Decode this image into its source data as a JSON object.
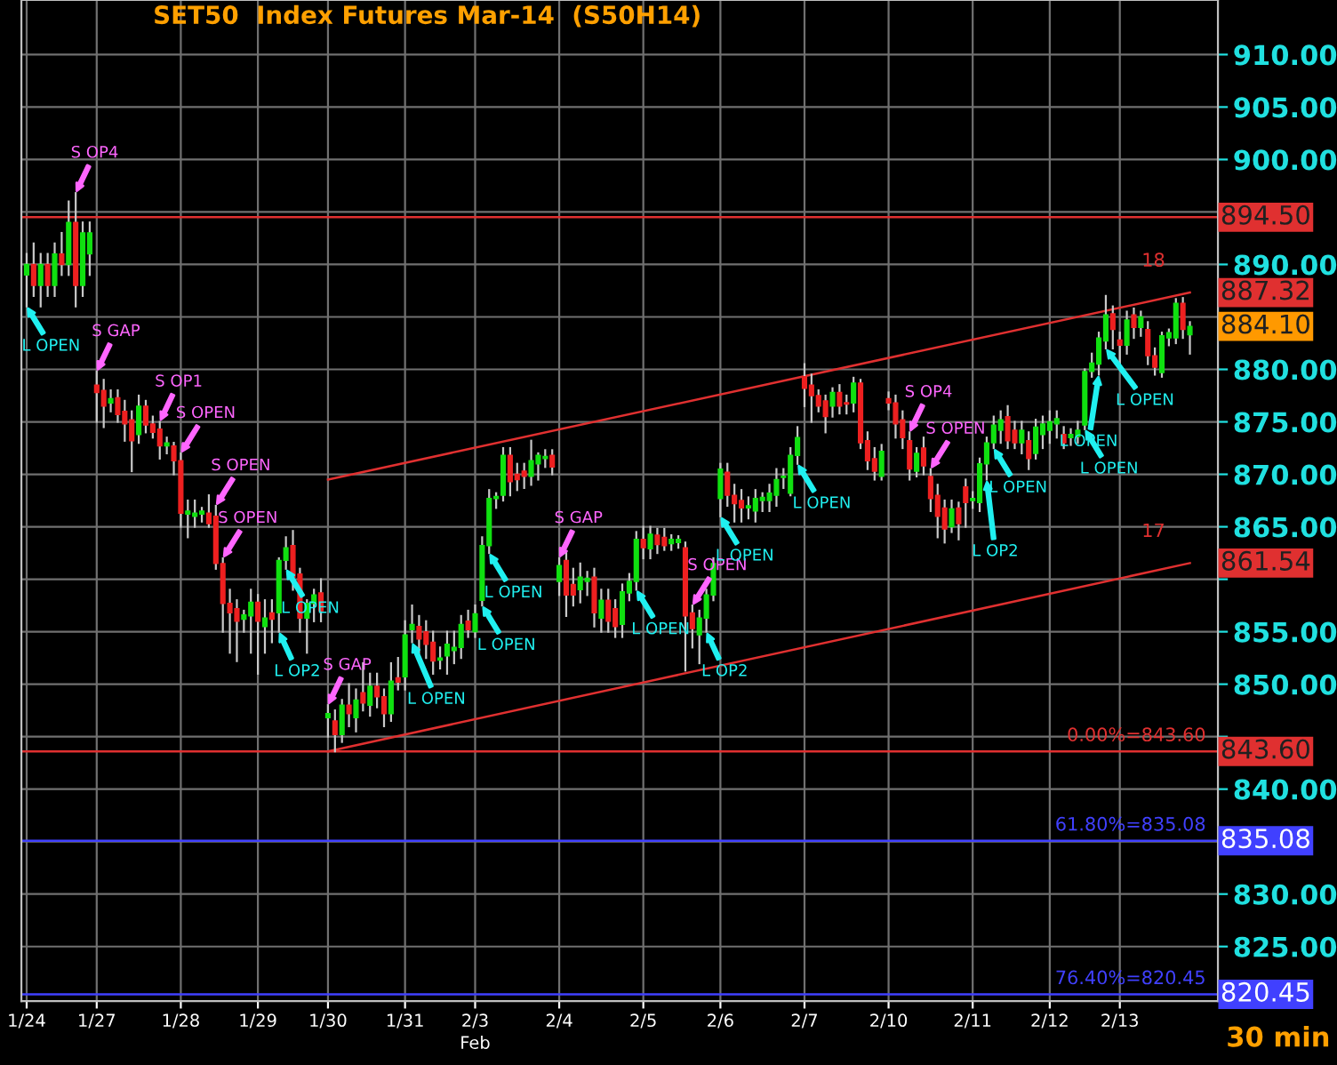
{
  "chart_data": {
    "type": "candlestick",
    "title": "SET50  Index Futures Mar-14  (S50H14)",
    "categories": [
      "1/24",
      null,
      null,
      null,
      null,
      null,
      null,
      null,
      null,
      null,
      "1/27",
      null,
      null,
      null,
      null,
      null,
      null,
      null,
      null,
      null,
      null,
      null,
      "1/28",
      null,
      null,
      null,
      null,
      null,
      null,
      null,
      null,
      null,
      null,
      "1/29",
      null,
      null,
      null,
      null,
      null,
      null,
      null,
      null,
      null,
      "1/30",
      null,
      null,
      null,
      null,
      null,
      null,
      null,
      null,
      null,
      null,
      "1/31",
      null,
      null,
      null,
      null,
      null,
      null,
      null,
      null,
      null,
      "2/3",
      null,
      null,
      null,
      null,
      null,
      null,
      null,
      null,
      null,
      null,
      null,
      "2/4",
      null,
      null,
      null,
      null,
      null,
      null,
      null,
      null,
      null,
      null,
      null,
      "2/5",
      null,
      null,
      null,
      null,
      null,
      null,
      null,
      null,
      null,
      null,
      "2/6",
      null,
      null,
      null,
      null,
      null,
      null,
      null,
      null,
      null,
      null,
      null,
      "2/7",
      null,
      null,
      null,
      null,
      null,
      null,
      null,
      null,
      null,
      null,
      null,
      "2/10",
      null,
      null,
      null,
      null,
      null,
      null,
      null,
      null,
      null,
      null,
      null,
      "2/11",
      null,
      null,
      null,
      null,
      null,
      null,
      null,
      null,
      null,
      null,
      "2/12",
      null,
      null,
      null,
      null,
      null,
      null,
      null,
      null,
      null,
      "2/13",
      null,
      null,
      null,
      null,
      null,
      null,
      null,
      null,
      null,
      null
    ],
    "ohlc": [
      [
        889,
        891,
        886,
        890
      ],
      [
        890,
        892,
        887,
        888
      ],
      [
        888,
        891,
        886,
        890
      ],
      [
        890,
        891,
        887,
        888
      ],
      [
        888,
        892,
        887,
        891
      ],
      [
        891,
        893,
        889,
        890
      ],
      [
        890,
        896,
        889,
        894
      ],
      [
        894,
        896.8,
        886,
        888
      ],
      [
        888,
        894,
        887,
        893
      ],
      [
        891,
        894,
        889,
        893
      ],
      [
        878.5,
        879.8,
        875,
        877.8
      ],
      [
        878,
        879,
        874.5,
        876.5
      ],
      [
        876.8,
        878,
        876,
        877.2
      ],
      [
        877.3,
        878,
        875,
        875.7
      ],
      [
        876,
        877,
        873.2,
        874.8
      ],
      [
        875.2,
        876,
        870.3,
        873.2
      ],
      [
        873.8,
        877.5,
        873,
        876.5
      ],
      [
        876.5,
        877,
        874,
        874.7
      ],
      [
        874.8,
        875.5,
        873.5,
        874
      ],
      [
        874.3,
        875,
        871.5,
        872.7
      ],
      [
        872.7,
        873.5,
        872,
        873
      ],
      [
        872.7,
        873,
        870,
        871.3
      ],
      [
        871.3,
        872,
        865,
        866.3
      ],
      [
        866.2,
        867.5,
        864,
        866.5
      ],
      [
        866,
        867.5,
        865,
        866.3
      ],
      [
        866.2,
        866.8,
        865.5,
        866.5
      ],
      [
        866.3,
        868,
        865,
        865.3
      ],
      [
        866,
        867,
        861,
        861.5
      ],
      [
        861.5,
        862,
        855,
        857.7
      ],
      [
        857.7,
        859,
        853,
        856.8
      ],
      [
        857.2,
        858,
        852.2,
        856
      ],
      [
        856.2,
        857,
        855,
        856.6
      ],
      [
        856.5,
        859,
        853,
        857.8
      ],
      [
        857.8,
        858.5,
        851,
        856
      ],
      [
        855.5,
        858,
        853,
        856.3
      ],
      [
        856.8,
        858,
        854,
        856.2
      ],
      [
        856.8,
        862,
        855,
        861.8
      ],
      [
        861.8,
        864,
        861,
        863
      ],
      [
        863.2,
        864.6,
        859,
        860.2
      ],
      [
        860.5,
        861,
        855,
        856.3
      ],
      [
        856.3,
        858,
        853,
        857.7
      ],
      [
        857.7,
        859,
        856,
        858.5
      ],
      [
        858.7,
        860,
        856,
        857
      ],
      [
        846.8,
        848,
        845,
        847.2
      ],
      [
        846.5,
        847.5,
        843.6,
        845.2
      ],
      [
        845.2,
        848.5,
        844.5,
        848
      ],
      [
        848,
        850,
        846,
        847.2
      ],
      [
        846.8,
        849.5,
        845.5,
        848.5
      ],
      [
        849.2,
        852,
        847.5,
        848.2
      ],
      [
        848,
        851,
        847,
        849.8
      ],
      [
        849.8,
        851,
        847.8,
        848.8
      ],
      [
        848.8,
        849.5,
        846,
        847.2
      ],
      [
        847.2,
        852,
        846.5,
        850.3
      ],
      [
        850.6,
        852.5,
        849.5,
        850.2
      ],
      [
        850.7,
        856,
        849.5,
        854.7
      ],
      [
        855.2,
        857.5,
        854,
        855.7
      ],
      [
        855.5,
        856.5,
        853,
        854.3
      ],
      [
        855,
        856,
        852.5,
        853.8
      ],
      [
        854,
        855,
        851,
        852.2
      ],
      [
        852.3,
        853.5,
        851.5,
        852.5
      ],
      [
        852.7,
        855,
        851,
        853.8
      ],
      [
        853.2,
        855,
        852,
        853.5
      ],
      [
        853.5,
        856.5,
        852.5,
        855.7
      ],
      [
        856,
        857,
        854.5,
        855.2
      ],
      [
        855,
        857.5,
        854.5,
        856.7
      ],
      [
        858,
        864,
        857.5,
        863.2
      ],
      [
        863.2,
        868.5,
        862.5,
        867.7
      ],
      [
        867.7,
        868.2,
        866.8,
        867.9
      ],
      [
        868,
        872.5,
        867.5,
        871.8
      ],
      [
        871.8,
        872.5,
        868,
        869.3
      ],
      [
        870,
        871,
        868.5,
        869.5
      ],
      [
        870.3,
        871,
        868.7,
        869.8
      ],
      [
        869.8,
        873.2,
        869,
        871.3
      ],
      [
        871,
        872,
        869.5,
        871.8
      ],
      [
        871.5,
        872.3,
        870.7,
        871.7
      ],
      [
        871.8,
        872.3,
        870,
        870.7
      ],
      [
        859.8,
        862,
        858.5,
        861.3
      ],
      [
        861.8,
        862.5,
        856.5,
        858.5
      ],
      [
        859.5,
        861,
        857.5,
        858.5
      ],
      [
        859,
        861.5,
        857.8,
        860.2
      ],
      [
        859.8,
        860.7,
        858.5,
        860.1
      ],
      [
        860.2,
        861,
        855.5,
        856.8
      ],
      [
        856.3,
        859,
        855,
        858
      ],
      [
        858,
        859,
        855,
        856
      ],
      [
        857.2,
        858,
        854.5,
        855.5
      ],
      [
        855.7,
        859.5,
        854.5,
        858.8
      ],
      [
        858.7,
        860.5,
        858,
        859.8
      ],
      [
        859.8,
        864.5,
        859,
        863.8
      ],
      [
        863.8,
        865,
        862,
        863
      ],
      [
        862.9,
        865,
        862,
        864.3
      ],
      [
        864.2,
        864.8,
        862.5,
        863.3
      ],
      [
        864,
        864.8,
        862.8,
        863.2
      ],
      [
        863.4,
        864.2,
        862.8,
        863.8
      ],
      [
        863.5,
        864.1,
        863,
        863.8
      ],
      [
        863,
        863.5,
        851.3,
        856.5
      ],
      [
        856.8,
        857.5,
        853.5,
        855.3
      ],
      [
        854.7,
        857,
        852,
        856.3
      ],
      [
        856.3,
        859,
        855,
        858.5
      ],
      [
        858.5,
        862,
        858,
        861.5
      ],
      [
        867.7,
        871,
        866,
        870.5
      ],
      [
        870.2,
        871,
        867,
        868
      ],
      [
        868,
        869,
        865.5,
        867.2
      ],
      [
        867.5,
        868.5,
        865.5,
        866.8
      ],
      [
        866.8,
        867.8,
        865.8,
        867
      ],
      [
        866.5,
        868.5,
        865.5,
        867.7
      ],
      [
        867.5,
        868.2,
        866.5,
        867.8
      ],
      [
        867.5,
        869,
        866.5,
        868.2
      ],
      [
        868,
        870.5,
        867,
        869.5
      ],
      [
        869.7,
        870.5,
        868.7,
        869.8
      ],
      [
        868.2,
        872.5,
        868,
        871.8
      ],
      [
        871.8,
        874.5,
        871,
        873.5
      ],
      [
        879.3,
        880.5,
        876.5,
        878.2
      ],
      [
        878.5,
        879.5,
        875,
        877.5
      ],
      [
        877.5,
        878,
        876,
        876.5
      ],
      [
        877,
        877.5,
        874,
        875.5
      ],
      [
        876.5,
        878.2,
        875.5,
        877.8
      ],
      [
        877.8,
        878.5,
        875.8,
        876.5
      ],
      [
        876.8,
        877.5,
        875.8,
        876.7
      ],
      [
        876.8,
        879.2,
        876,
        878.7
      ],
      [
        878.7,
        879,
        872.5,
        873
      ],
      [
        873.2,
        874,
        870.5,
        871.3
      ],
      [
        871.5,
        872.5,
        869.5,
        870.3
      ],
      [
        869.8,
        872.8,
        869.5,
        872.2
      ],
      [
        877.2,
        877.8,
        876.2,
        876.8
      ],
      [
        876.8,
        877.5,
        873.5,
        874.8
      ],
      [
        875.2,
        876,
        872.5,
        873.5
      ],
      [
        873.2,
        874,
        869.5,
        870.5
      ],
      [
        870.3,
        872.5,
        869.8,
        872
      ],
      [
        872.5,
        873.5,
        870,
        870.8
      ],
      [
        869.8,
        870.5,
        866.5,
        867.7
      ],
      [
        868,
        869,
        864,
        866
      ],
      [
        866.8,
        867.5,
        863.5,
        864.8
      ],
      [
        865,
        867.5,
        864.5,
        866.7
      ],
      [
        866.8,
        867.3,
        863.8,
        865.3
      ],
      [
        868.8,
        869.5,
        865,
        867.3
      ],
      [
        867.5,
        868.3,
        866.8,
        867.7
      ],
      [
        867.3,
        871.5,
        866.5,
        871
      ],
      [
        871,
        873.5,
        869.5,
        873
      ],
      [
        873,
        875.5,
        872.5,
        874.7
      ],
      [
        874.2,
        876,
        873,
        875.2
      ],
      [
        875.5,
        876.5,
        872.5,
        873.2
      ],
      [
        874.2,
        875,
        872.5,
        873
      ],
      [
        873,
        875,
        872,
        874.2
      ],
      [
        873.2,
        874,
        870.5,
        871.5
      ],
      [
        872,
        875.2,
        871.5,
        874.5
      ],
      [
        873.8,
        875.5,
        872.5,
        874.8
      ],
      [
        874.2,
        876,
        873,
        875
      ],
      [
        874.8,
        876,
        873.5,
        875.3
      ],
      [
        873.8,
        874.5,
        872.5,
        873
      ],
      [
        873.5,
        874.3,
        872.8,
        873.8
      ],
      [
        873.6,
        875,
        873,
        874.2
      ],
      [
        874.7,
        880,
        874.3,
        879.8
      ],
      [
        879.8,
        881.5,
        879.3,
        880.6
      ],
      [
        880.5,
        883.5,
        879.5,
        883
      ],
      [
        882.7,
        887,
        882,
        885.2
      ],
      [
        885.3,
        886,
        882,
        883.8
      ],
      [
        882.8,
        883.5,
        880.5,
        882.3
      ],
      [
        882.3,
        885.5,
        881.5,
        884.7
      ],
      [
        885.2,
        885.8,
        883,
        884
      ],
      [
        884,
        885.5,
        883.2,
        885
      ],
      [
        883.8,
        884.5,
        880.5,
        881.3
      ],
      [
        881.3,
        882,
        879.5,
        880.2
      ],
      [
        879.7,
        883.5,
        879.3,
        883.2
      ],
      [
        883,
        883.8,
        882.3,
        883.5
      ],
      [
        883,
        886.7,
        882.5,
        886.3
      ],
      [
        886.3,
        886.8,
        883,
        883.8
      ],
      [
        883.3,
        884.5,
        881.5,
        884.1
      ]
    ],
    "series": [
      {
        "type": "line",
        "color": "#e03030",
        "values": [
          null,
          null,
          null,
          null,
          null,
          null,
          null,
          null,
          null,
          null,
          null,
          null,
          null,
          null,
          null,
          null,
          null,
          null,
          null,
          null,
          null,
          null,
          null,
          null,
          null,
          null,
          null,
          null,
          null,
          null,
          null,
          null,
          null,
          null,
          null,
          null,
          null,
          null,
          null,
          null,
          null,
          null,
          null,
          869.5,
          null,
          null,
          null,
          null,
          null,
          null,
          null,
          null,
          null,
          null,
          null,
          null,
          null,
          null,
          null,
          null,
          null,
          null,
          null,
          null,
          null,
          null,
          null,
          null,
          null,
          null,
          null,
          null,
          null,
          null,
          null,
          null,
          null,
          null,
          null,
          null,
          null,
          null,
          null,
          null,
          null,
          null,
          null,
          null,
          null,
          null,
          null,
          null,
          null,
          null,
          null,
          null,
          null,
          null,
          null,
          null,
          null,
          null,
          null,
          null,
          null,
          null,
          null,
          null,
          null,
          null,
          null,
          null,
          null,
          null,
          null,
          null,
          null,
          null,
          null,
          null,
          null,
          null,
          null,
          null,
          null,
          null,
          null,
          null,
          null,
          null,
          null,
          null,
          null,
          null,
          null,
          null,
          null,
          null,
          null,
          null,
          null,
          null,
          null,
          null,
          null,
          null,
          null,
          null,
          null,
          null,
          null,
          null,
          null,
          null,
          null,
          null,
          null,
          null,
          null,
          null,
          null,
          null,
          null,
          null,
          null,
          null,
          887.32
        ]
      },
      {
        "type": "line",
        "color": "#e03030",
        "values": [
          null,
          null,
          null,
          null,
          null,
          null,
          null,
          null,
          null,
          null,
          null,
          null,
          null,
          null,
          null,
          null,
          null,
          null,
          null,
          null,
          null,
          null,
          null,
          null,
          null,
          null,
          null,
          null,
          null,
          null,
          null,
          null,
          null,
          null,
          null,
          null,
          null,
          null,
          null,
          null,
          null,
          null,
          null,
          843.6,
          null,
          null,
          null,
          null,
          null,
          null,
          null,
          null,
          null,
          null,
          null,
          null,
          null,
          null,
          null,
          null,
          null,
          null,
          null,
          null,
          null,
          null,
          null,
          null,
          null,
          null,
          null,
          null,
          null,
          null,
          null,
          null,
          null,
          null,
          null,
          null,
          null,
          null,
          null,
          null,
          null,
          null,
          null,
          null,
          null,
          null,
          null,
          null,
          null,
          null,
          null,
          null,
          null,
          null,
          null,
          null,
          null,
          null,
          null,
          null,
          null,
          null,
          null,
          null,
          null,
          null,
          null,
          null,
          null,
          null,
          null,
          null,
          null,
          null,
          null,
          null,
          null,
          null,
          null,
          null,
          null,
          null,
          null,
          null,
          null,
          null,
          null,
          null,
          null,
          null,
          null,
          null,
          null,
          null,
          null,
          null,
          null,
          null,
          null,
          null,
          null,
          null,
          null,
          null,
          null,
          null,
          null,
          null,
          null,
          null,
          null,
          null,
          null,
          null,
          null,
          null,
          null,
          null,
          null,
          null,
          null,
          null,
          861.54
        ]
      }
    ],
    "ref_lines": [
      {
        "axis": "y",
        "value": 894.5,
        "color": "#e03030"
      },
      {
        "axis": "y",
        "value": 843.6,
        "label": "0.00%=843.60",
        "color": "#e03030"
      },
      {
        "axis": "y",
        "value": 835.08,
        "label": "61.80%=835.08",
        "color": "#4040ff"
      },
      {
        "axis": "y",
        "value": 820.45,
        "label": "76.40%=820.45",
        "color": "#4040ff"
      }
    ],
    "annotations": [
      "L OPEN",
      "S OP4",
      "S GAP",
      "S OP1",
      "S OPEN",
      "S OPEN",
      "S OPEN",
      "L OP2",
      "L OPEN",
      "S GAP",
      "L OPEN",
      "L OPEN",
      "L OPEN",
      "S GAP",
      "L OPEN",
      "S OPEN",
      "L OP2",
      "L OPEN",
      "L OPEN",
      "S OP4",
      "S OPEN",
      "L OP2",
      "L OPEN",
      "L OPEN",
      "L OPEN",
      "L OPEN",
      "18",
      "17",
      "894.50",
      "887.32",
      "884.10",
      "861.54",
      "843.60",
      "835.08",
      "820.45",
      "30 min",
      "Feb"
    ],
    "ylim": [
      819.8,
      915.2
    ],
    "yticks": [
      {
        "value": 825,
        "label": "825.00"
      },
      {
        "value": 830,
        "label": "830.00"
      },
      {
        "value": 835,
        "label": null
      },
      {
        "value": 840,
        "label": "840.00"
      },
      {
        "value": 845,
        "label": null
      },
      {
        "value": 850,
        "label": "850.00"
      },
      {
        "value": 855,
        "label": "855.00"
      },
      {
        "value": 860,
        "label": null
      },
      {
        "value": 865,
        "label": "865.00"
      },
      {
        "value": 870,
        "label": "870.00"
      },
      {
        "value": 875,
        "label": "875.00"
      },
      {
        "value": 880,
        "label": "880.00"
      },
      {
        "value": 885,
        "label": null
      },
      {
        "value": 890,
        "label": "890.00"
      },
      {
        "value": 895,
        "label": null
      },
      {
        "value": 900,
        "label": "900.00"
      },
      {
        "value": 905,
        "label": "905.00"
      },
      {
        "value": 910,
        "label": "910.00"
      }
    ],
    "grid": true
  }
}
